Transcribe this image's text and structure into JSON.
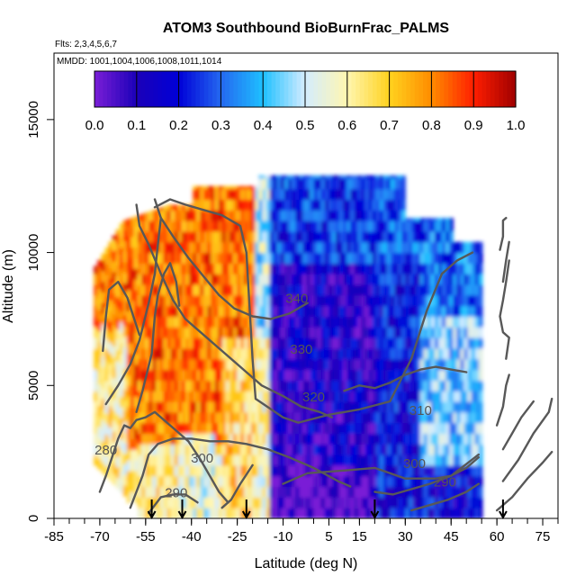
{
  "chart_data": {
    "type": "heatmap",
    "title": "ATOM3 Southbound BioBurnFrac_PALMS",
    "flights_label": "Flts: 2,3,4,5,6,7",
    "dates_label": "MMDD: 1001,1004,1006,1008,1011,1014",
    "xlabel": "Latitude (deg N)",
    "ylabel": "Altitude (m)",
    "xlim": [
      -85,
      80
    ],
    "ylim": [
      0,
      17500
    ],
    "x_ticks": [
      -85,
      -70,
      -55,
      -40,
      -25,
      -10,
      5,
      15,
      30,
      45,
      60,
      75
    ],
    "x_tick_labels": [
      "-85",
      "-70",
      "-55",
      "-40",
      "-25",
      "-10",
      "5",
      "15",
      "30",
      "45",
      "60",
      "75"
    ],
    "x_minor_step": 5,
    "y_ticks": [
      0,
      5000,
      10000,
      15000
    ],
    "y_tick_labels": [
      "0",
      "5000",
      "10000",
      "15000"
    ],
    "colorbar": {
      "range": [
        0,
        1
      ],
      "tick_values": [
        0.0,
        0.1,
        0.2,
        0.3,
        0.4,
        0.5,
        0.6,
        0.7,
        0.8,
        0.9,
        1.0
      ],
      "tick_labels": [
        "0.0",
        "0.1",
        "0.2",
        "0.3",
        "0.4",
        "0.5",
        "0.6",
        "0.7",
        "0.8",
        "0.9",
        "1.0"
      ],
      "colors": [
        "#7a1fd6",
        "#1b00b8",
        "#0000d8",
        "#2468f0",
        "#1ec0ff",
        "#d4ecff",
        "#fff6b0",
        "#ffd21e",
        "#ff8c00",
        "#ff1e00",
        "#a00000"
      ]
    },
    "field_regions": [
      {
        "lat": [
          -70,
          -40
        ],
        "alt": [
          7000,
          11500
        ],
        "value": 0.9
      },
      {
        "lat": [
          -70,
          -60
        ],
        "alt": [
          2500,
          9000
        ],
        "value": 0.7
      },
      {
        "lat": [
          -55,
          -30
        ],
        "alt": [
          2000,
          9000
        ],
        "value": 0.8
      },
      {
        "lat": [
          -30,
          -20
        ],
        "alt": [
          1500,
          7500
        ],
        "value": 0.72
      },
      {
        "lat": [
          -22,
          -17
        ],
        "alt": [
          500,
          12500
        ],
        "value": 0.5
      },
      {
        "lat": [
          -17,
          20
        ],
        "alt": [
          0,
          12000
        ],
        "value": 0.12
      },
      {
        "lat": [
          20,
          35
        ],
        "alt": [
          0,
          11500
        ],
        "value": 0.25
      },
      {
        "lat": [
          35,
          55
        ],
        "alt": [
          0,
          10000
        ],
        "value": 0.4
      }
    ],
    "contour_levels": [
      {
        "label": "340",
        "lat": -5.5,
        "alt": 8100
      },
      {
        "label": "330",
        "lat": -4,
        "alt": 6200
      },
      {
        "label": "320",
        "lat": 0,
        "alt": 4400
      },
      {
        "label": "310",
        "lat": 35,
        "alt": 3900
      },
      {
        "label": "300",
        "lat": -36.5,
        "alt": 2100
      },
      {
        "label": "300",
        "lat": 33,
        "alt": 1900
      },
      {
        "label": "290",
        "lat": -45,
        "alt": 800
      },
      {
        "label": "290",
        "lat": 43,
        "alt": 1200
      },
      {
        "label": "280",
        "lat": -68,
        "alt": 2400
      }
    ],
    "flight_arrows_lat": [
      -53,
      -43,
      -22,
      20,
      62
    ]
  }
}
